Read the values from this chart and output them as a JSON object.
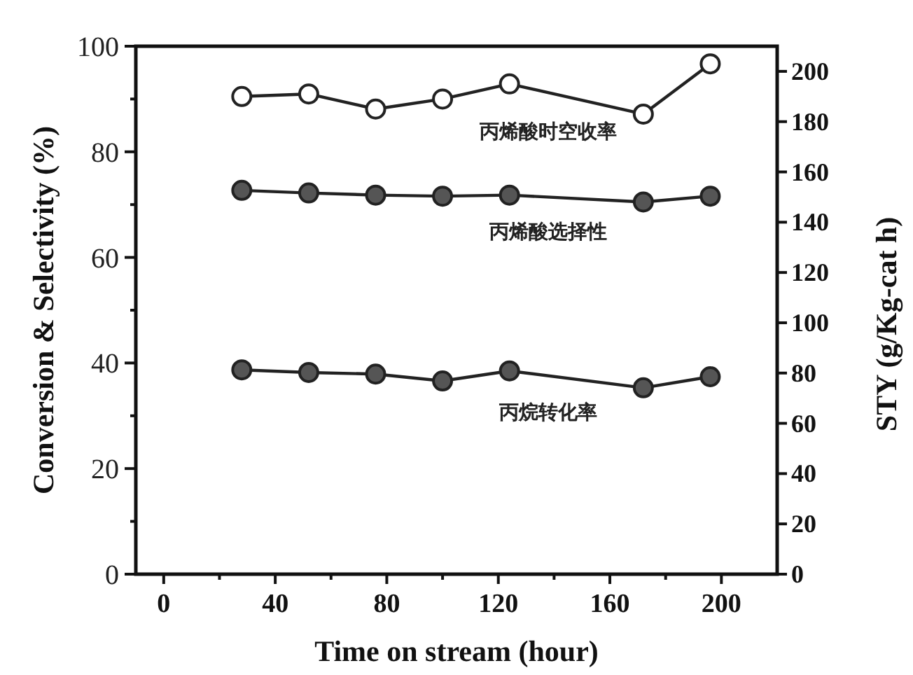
{
  "chart_data": {
    "type": "line",
    "xlabel": "Time on stream (hour)",
    "ylabel": "Conversion & Selectivity (%)",
    "y2label": "STY (g/Kg-cat h)",
    "x": [
      28,
      52,
      76,
      100,
      124,
      172,
      196
    ],
    "xlim": [
      -10,
      220
    ],
    "xticks": [
      0,
      {
        "value": 20,
        "label": null
      },
      40,
      {
        "value": 60,
        "label": null
      },
      80,
      {
        "value": 100,
        "label": null
      },
      120,
      {
        "value": 140,
        "label": null
      },
      160,
      {
        "value": 180,
        "label": null
      },
      200
    ],
    "ylim": [
      0,
      100
    ],
    "yticks": [
      0,
      {
        "value": 10,
        "label": null
      },
      20,
      {
        "value": 30,
        "label": null
      },
      40,
      {
        "value": 50,
        "label": null
      },
      60,
      {
        "value": 70,
        "label": null
      },
      80,
      {
        "value": 90,
        "label": null
      },
      100
    ],
    "y2lim": [
      0,
      210
    ],
    "y2ticks": [
      0,
      20,
      40,
      60,
      80,
      100,
      120,
      140,
      160,
      180,
      200
    ],
    "marker": "circle",
    "line_style": "solid",
    "grid": false,
    "series": [
      {
        "name": "丙烯酸时空收率",
        "color": "#ffffff",
        "axis": "y2",
        "values": [
          190,
          191,
          185,
          189,
          195,
          183,
          203
        ]
      },
      {
        "name": "丙烯酸选择性",
        "color": "#555555",
        "values": [
          72.7,
          72.2,
          71.8,
          71.6,
          71.8,
          70.5,
          71.6
        ]
      },
      {
        "name": "丙烷转化率",
        "color": "#555555",
        "values": [
          38.7,
          38.2,
          37.9,
          36.6,
          38.5,
          35.3,
          37.4
        ]
      }
    ]
  }
}
